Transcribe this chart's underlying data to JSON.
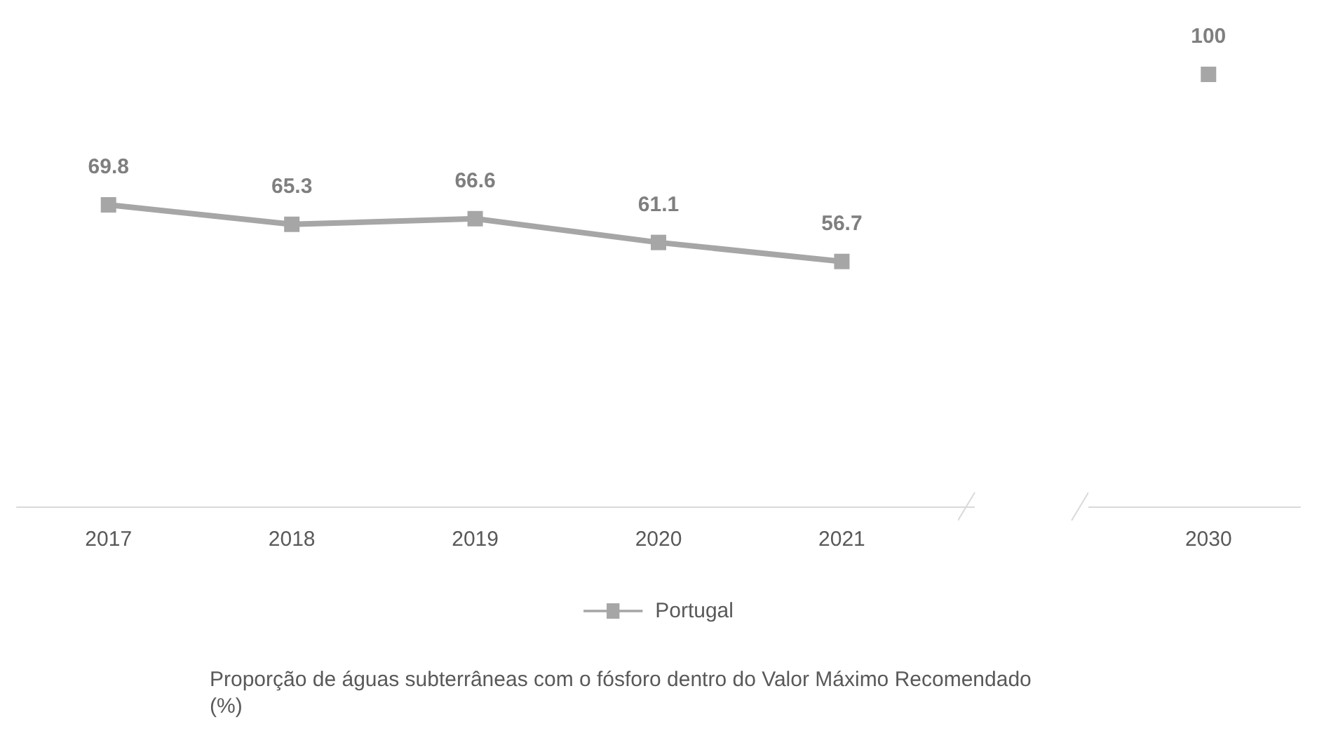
{
  "chart_data": {
    "type": "line",
    "title": "Proporção de águas subterrâneas com o fósforo dentro do Valor Máximo Recomendado (%)",
    "categories": [
      "2017",
      "2018",
      "2019",
      "2020",
      "2021",
      null,
      "2030"
    ],
    "series": [
      {
        "name": "Portugal",
        "color": "#a6a6a6",
        "values": [
          69.8,
          65.3,
          66.6,
          61.1,
          56.7,
          null,
          100
        ]
      }
    ],
    "tick_labels": "x",
    "data_labels": true,
    "legend": "bottom",
    "marker": "square",
    "line_style": "solid",
    "grid": false
  }
}
